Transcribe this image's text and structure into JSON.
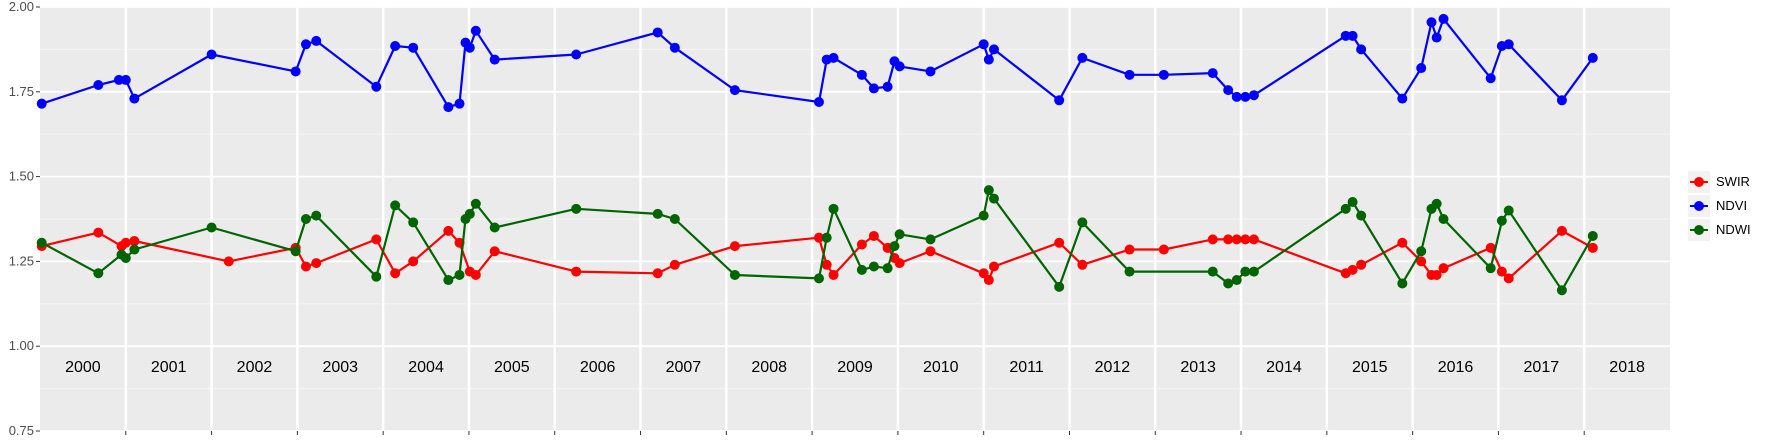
{
  "chart_data": {
    "type": "line",
    "title": "",
    "xlabel": "",
    "ylabel": "",
    "ylim": [
      0.75,
      2.0
    ],
    "yticks": [
      "0.75",
      "1.00",
      "1.25",
      "1.50",
      "1.75",
      "2.00"
    ],
    "xlim": [
      2000.0,
      2019.0
    ],
    "years": [
      "2000",
      "2001",
      "2002",
      "2003",
      "2004",
      "2005",
      "2006",
      "2007",
      "2008",
      "2009",
      "2010",
      "2011",
      "2012",
      "2013",
      "2014",
      "2015",
      "2016",
      "2017",
      "2018"
    ],
    "grid": true,
    "legend_position": "right",
    "series": [
      {
        "name": "SWIR",
        "color": "#ff0000",
        "x": [
          2000.02,
          2000.68,
          2000.95,
          2001.0,
          2001.1,
          2002.2,
          2002.98,
          2003.1,
          2003.22,
          2003.92,
          2004.14,
          2004.35,
          2004.76,
          2004.89,
          2005.01,
          2005.08,
          2005.3,
          2006.25,
          2007.2,
          2007.4,
          2008.1,
          2009.08,
          2009.17,
          2009.25,
          2009.58,
          2009.72,
          2009.88,
          2009.96,
          2010.02,
          2010.38,
          2011.0,
          2011.06,
          2011.12,
          2011.88,
          2012.15,
          2012.7,
          2013.1,
          2013.67,
          2013.85,
          2013.95,
          2014.05,
          2014.15,
          2015.22,
          2015.3,
          2015.4,
          2015.88,
          2016.1,
          2016.22,
          2016.28,
          2016.36,
          2016.91,
          2017.04,
          2017.12,
          2017.74,
          2018.1
        ],
        "y": [
          1.295,
          1.335,
          1.295,
          1.305,
          1.31,
          1.25,
          1.29,
          1.235,
          1.245,
          1.315,
          1.215,
          1.25,
          1.34,
          1.305,
          1.22,
          1.21,
          1.28,
          1.22,
          1.215,
          1.24,
          1.295,
          1.32,
          1.24,
          1.21,
          1.3,
          1.325,
          1.29,
          1.26,
          1.245,
          1.28,
          1.215,
          1.195,
          1.235,
          1.305,
          1.24,
          1.285,
          1.285,
          1.315,
          1.315,
          1.315,
          1.315,
          1.315,
          1.215,
          1.225,
          1.24,
          1.305,
          1.25,
          1.21,
          1.21,
          1.23,
          1.29,
          1.22,
          1.2,
          1.34,
          1.29
        ]
      },
      {
        "name": "NDVI",
        "color": "#0000ff",
        "x": [
          2000.02,
          2000.68,
          2000.92,
          2001.0,
          2001.1,
          2002.0,
          2002.98,
          2003.1,
          2003.22,
          2003.92,
          2004.14,
          2004.35,
          2004.76,
          2004.89,
          2004.96,
          2005.01,
          2005.08,
          2005.3,
          2006.25,
          2007.2,
          2007.4,
          2008.1,
          2009.08,
          2009.17,
          2009.25,
          2009.58,
          2009.72,
          2009.88,
          2009.96,
          2010.02,
          2010.38,
          2011.0,
          2011.06,
          2011.12,
          2011.88,
          2012.15,
          2012.7,
          2013.1,
          2013.67,
          2013.85,
          2013.95,
          2014.05,
          2014.15,
          2015.22,
          2015.3,
          2015.4,
          2015.88,
          2016.1,
          2016.22,
          2016.28,
          2016.36,
          2016.91,
          2017.04,
          2017.12,
          2017.74,
          2018.1
        ],
        "y": [
          1.715,
          1.77,
          1.785,
          1.785,
          1.73,
          1.86,
          1.81,
          1.89,
          1.9,
          1.765,
          1.885,
          1.88,
          1.705,
          1.715,
          1.895,
          1.88,
          1.93,
          1.845,
          1.86,
          1.925,
          1.88,
          1.755,
          1.72,
          1.845,
          1.85,
          1.8,
          1.76,
          1.765,
          1.84,
          1.825,
          1.81,
          1.89,
          1.845,
          1.875,
          1.725,
          1.85,
          1.8,
          1.8,
          1.805,
          1.755,
          1.735,
          1.735,
          1.74,
          1.915,
          1.915,
          1.875,
          1.73,
          1.82,
          1.955,
          1.91,
          1.965,
          1.79,
          1.885,
          1.89,
          1.725,
          1.85
        ]
      },
      {
        "name": "NDWI",
        "color": "#006400",
        "x": [
          2000.02,
          2000.68,
          2000.95,
          2001.0,
          2001.1,
          2002.0,
          2002.98,
          2003.1,
          2003.22,
          2003.92,
          2004.14,
          2004.35,
          2004.76,
          2004.89,
          2004.96,
          2005.01,
          2005.08,
          2005.3,
          2006.25,
          2007.2,
          2007.4,
          2008.1,
          2009.08,
          2009.17,
          2009.25,
          2009.58,
          2009.72,
          2009.88,
          2009.96,
          2010.02,
          2010.38,
          2011.0,
          2011.06,
          2011.12,
          2011.88,
          2012.15,
          2012.7,
          2013.67,
          2013.85,
          2013.95,
          2014.05,
          2014.15,
          2015.22,
          2015.3,
          2015.4,
          2015.88,
          2016.1,
          2016.22,
          2016.28,
          2016.36,
          2016.91,
          2017.04,
          2017.12,
          2017.74,
          2018.1
        ],
        "y": [
          1.305,
          1.215,
          1.27,
          1.26,
          1.285,
          1.35,
          1.28,
          1.375,
          1.385,
          1.205,
          1.415,
          1.365,
          1.195,
          1.21,
          1.375,
          1.39,
          1.42,
          1.35,
          1.405,
          1.39,
          1.375,
          1.21,
          1.2,
          1.32,
          1.405,
          1.225,
          1.235,
          1.23,
          1.295,
          1.33,
          1.315,
          1.385,
          1.46,
          1.435,
          1.175,
          1.365,
          1.22,
          1.22,
          1.185,
          1.195,
          1.22,
          1.22,
          1.405,
          1.425,
          1.385,
          1.185,
          1.28,
          1.405,
          1.42,
          1.375,
          1.23,
          1.37,
          1.4,
          1.165,
          1.325
        ]
      }
    ]
  }
}
